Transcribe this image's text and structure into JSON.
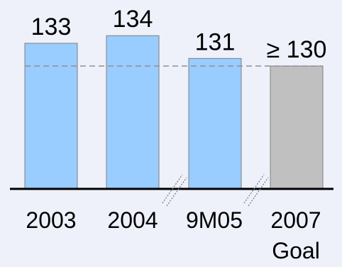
{
  "chart_data": {
    "type": "bar",
    "title": "",
    "xlabel": "",
    "ylabel": "",
    "categories": [
      "2003",
      "2004",
      "9M05",
      "2007"
    ],
    "category_sublabels": [
      "",
      "",
      "",
      "Goal"
    ],
    "values": [
      133,
      134,
      131,
      130
    ],
    "data_labels": [
      "133",
      "134",
      "131",
      "≥ 130"
    ],
    "bar_colors": [
      "#99ccff",
      "#99ccff",
      "#99ccff",
      "#c0c0c0"
    ],
    "bar_edge_color": "#808080",
    "reference_line": {
      "value": 130,
      "style": "dashed",
      "color": "#909090"
    },
    "axis_breaks_between": [
      [
        "2004",
        "9M05"
      ],
      [
        "9M05",
        "2007"
      ]
    ],
    "axis": {
      "truncated": true,
      "ylim": [
        0,
        140
      ]
    },
    "grid": false,
    "legend": "none"
  }
}
